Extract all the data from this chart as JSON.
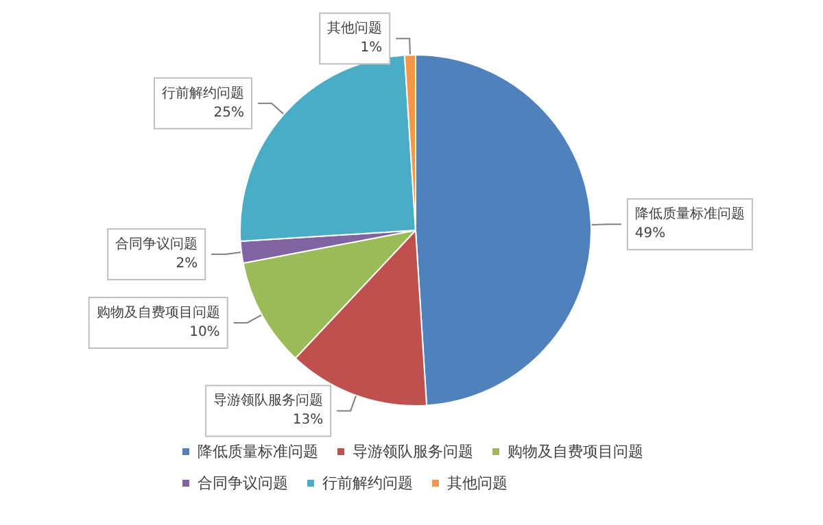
{
  "chart_data": {
    "type": "pie",
    "categories": [
      "降低质量标准问题",
      "导游领队服务问题",
      "购物及自费项目问题",
      "合同争议问题",
      "行前解约问题",
      "其他问题"
    ],
    "values": [
      49,
      13,
      10,
      2,
      25,
      1
    ],
    "colors": [
      "#4f81bd",
      "#c0504d",
      "#9bbb59",
      "#8064a2",
      "#4bacc6",
      "#f79646"
    ],
    "value_labels": [
      "49%",
      "13%",
      "10%",
      "2%",
      "25%",
      "1%"
    ],
    "legend": "bottom"
  }
}
